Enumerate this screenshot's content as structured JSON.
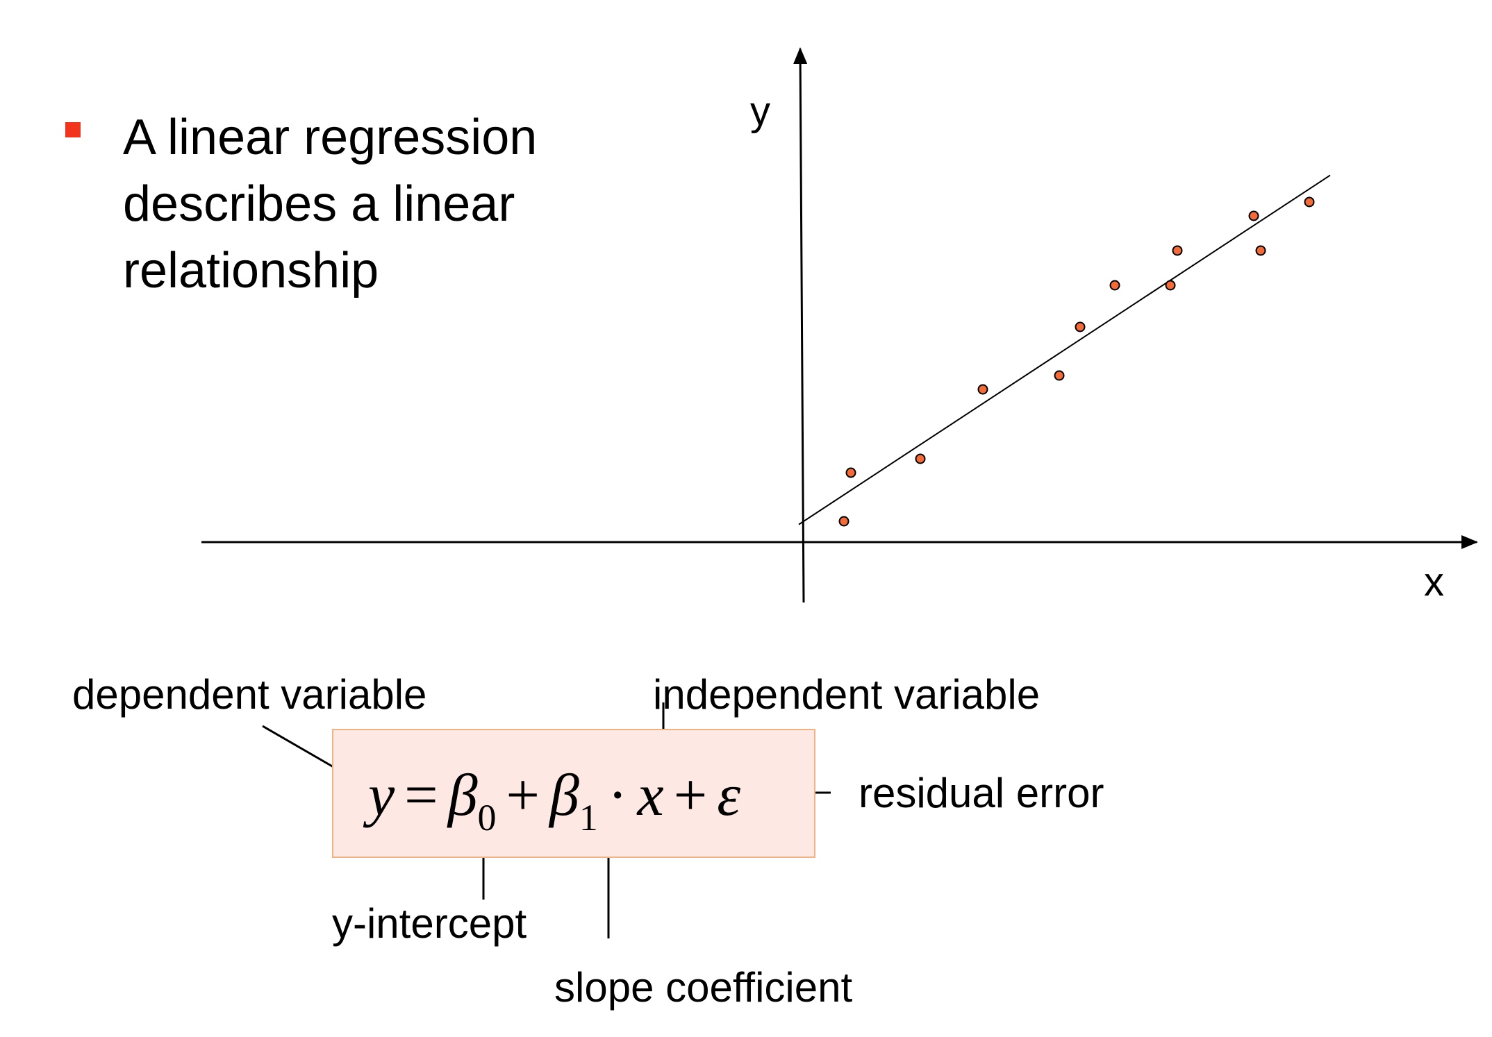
{
  "bullet": {
    "lines": [
      "A linear regression",
      "describes a linear",
      "relationship"
    ],
    "marker_color": "#f2341f"
  },
  "chart_data": {
    "type": "scatter",
    "xlabel": "x",
    "ylabel": "y",
    "regression_line": true,
    "point_color": "#f26b38",
    "points": [
      {
        "x": 0.6,
        "y": 0.3
      },
      {
        "x": 0.7,
        "y": 1.0
      },
      {
        "x": 1.7,
        "y": 1.2
      },
      {
        "x": 2.6,
        "y": 2.2
      },
      {
        "x": 3.7,
        "y": 2.4
      },
      {
        "x": 4.0,
        "y": 3.1
      },
      {
        "x": 4.5,
        "y": 3.7
      },
      {
        "x": 5.3,
        "y": 3.7
      },
      {
        "x": 5.4,
        "y": 4.2
      },
      {
        "x": 6.5,
        "y": 4.7
      },
      {
        "x": 6.6,
        "y": 4.2
      },
      {
        "x": 7.3,
        "y": 4.9
      }
    ]
  },
  "formula": {
    "y": "y",
    "eq": "=",
    "beta": "β",
    "sub0": "0",
    "sub1": "1",
    "plus": "+",
    "dot": "·",
    "x": "x",
    "eps": "ε",
    "box_fill": "#fde8e4",
    "box_border": "#f4b184"
  },
  "annotations": {
    "dependent": "dependent variable",
    "independent": "independent variable",
    "residual": "residual error",
    "intercept": "y-intercept",
    "slope": "slope coefficient"
  }
}
